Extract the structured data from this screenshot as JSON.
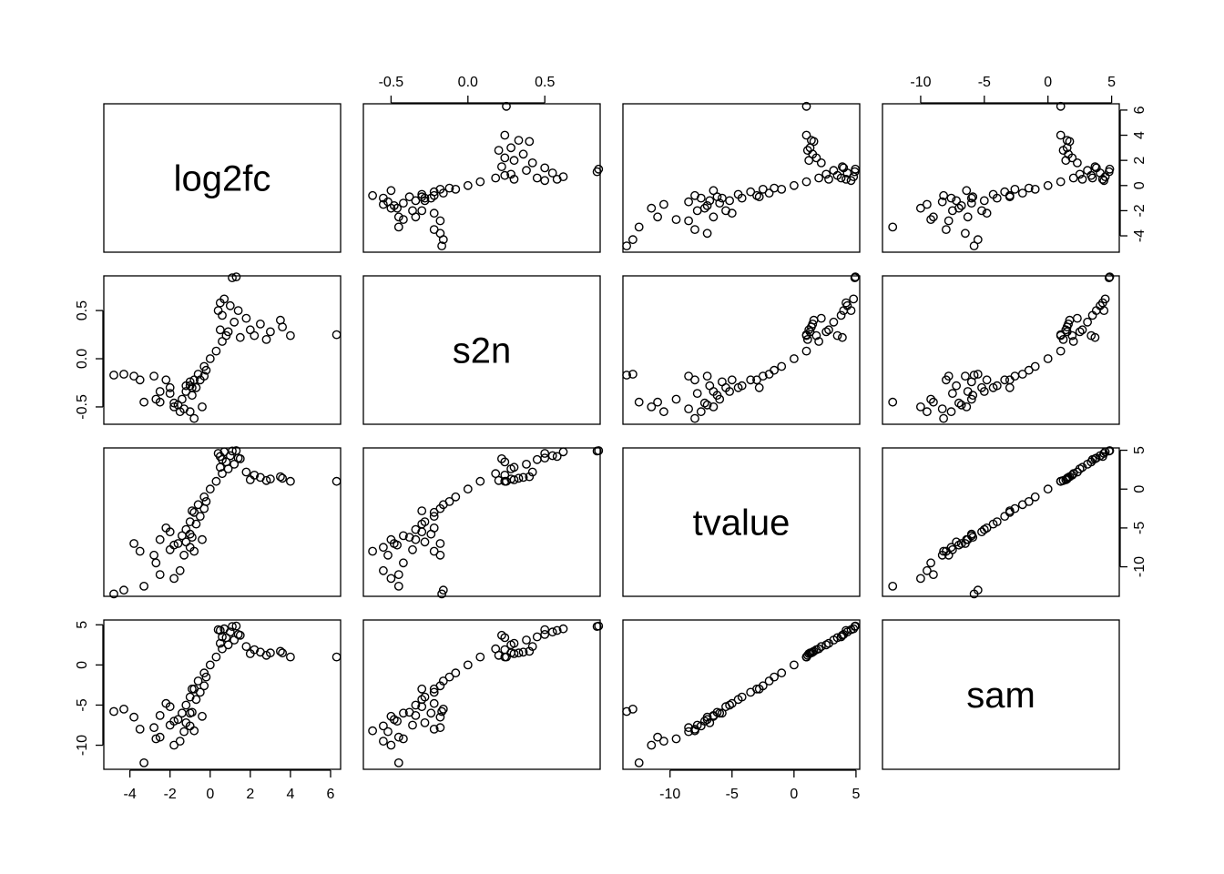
{
  "chart_data": {
    "type": "scatter",
    "title": "",
    "variables": [
      "log2fc",
      "s2n",
      "tvalue",
      "sam"
    ],
    "ranges": {
      "log2fc": [
        -5.3,
        6.5
      ],
      "s2n": [
        -0.68,
        0.86
      ],
      "tvalue": [
        -13.8,
        5.3
      ],
      "sam": [
        -13.0,
        5.6
      ]
    },
    "ticks": {
      "log2fc": [
        -4,
        -2,
        0,
        2,
        4,
        6
      ],
      "s2n": [
        -0.5,
        0.0,
        0.5
      ],
      "tvalue": [
        -10,
        -5,
        0,
        5
      ],
      "sam": [
        -10,
        -5,
        0,
        5
      ]
    },
    "tick_labels": {
      "log2fc": [
        "-4",
        "-2",
        "0",
        "2",
        "4",
        "6"
      ],
      "s2n": [
        "-0.5",
        "0.0",
        "0.5"
      ],
      "tvalue": [
        "-10",
        "-5",
        "0",
        "5"
      ],
      "sam": [
        "-10",
        "-5",
        "0",
        "5"
      ]
    },
    "axes": {
      "top": [
        {
          "col": 1,
          "var": "s2n"
        },
        {
          "col": 3,
          "var": "sam"
        }
      ],
      "bottom": [
        {
          "col": 0,
          "var": "log2fc"
        },
        {
          "col": 2,
          "var": "tvalue"
        }
      ],
      "left": [
        {
          "row": 1,
          "var": "s2n"
        },
        {
          "row": 3,
          "var": "sam"
        }
      ],
      "right": [
        {
          "row": 0,
          "var": "log2fc"
        },
        {
          "row": 2,
          "var": "tvalue"
        }
      ]
    },
    "grid": false,
    "marker": "open-circle",
    "points": [
      {
        "log2fc": 0.0,
        "s2n": 0.0,
        "tvalue": 0.0,
        "sam": 0.0
      },
      {
        "log2fc": 0.3,
        "s2n": 0.08,
        "tvalue": 1.0,
        "sam": 1.0
      },
      {
        "log2fc": 0.6,
        "s2n": 0.18,
        "tvalue": 2.0,
        "sam": 2.0
      },
      {
        "log2fc": 0.9,
        "s2n": 0.28,
        "tvalue": 2.6,
        "sam": 2.5
      },
      {
        "log2fc": 1.2,
        "s2n": 0.38,
        "tvalue": 3.2,
        "sam": 3.1
      },
      {
        "log2fc": 1.4,
        "s2n": 0.5,
        "tvalue": 4.0,
        "sam": 3.8
      },
      {
        "log2fc": 1.0,
        "s2n": 0.55,
        "tvalue": 4.3,
        "sam": 4.1
      },
      {
        "log2fc": 0.6,
        "s2n": 0.45,
        "tvalue": 3.8,
        "sam": 3.5
      },
      {
        "log2fc": 0.5,
        "s2n": 0.3,
        "tvalue": 2.8,
        "sam": 2.7
      },
      {
        "log2fc": 0.7,
        "s2n": 0.62,
        "tvalue": 4.8,
        "sam": 4.5
      },
      {
        "log2fc": 1.1,
        "s2n": 0.84,
        "tvalue": 4.9,
        "sam": 4.8
      },
      {
        "log2fc": 1.3,
        "s2n": 0.85,
        "tvalue": 4.95,
        "sam": 4.85
      },
      {
        "log2fc": 0.8,
        "s2n": 0.24,
        "tvalue": 3.5,
        "sam": 3.4
      },
      {
        "log2fc": 1.5,
        "s2n": 0.22,
        "tvalue": 3.9,
        "sam": 3.7
      },
      {
        "log2fc": 2.0,
        "s2n": 0.3,
        "tvalue": 1.2,
        "sam": 1.4
      },
      {
        "log2fc": 2.5,
        "s2n": 0.36,
        "tvalue": 1.5,
        "sam": 1.6
      },
      {
        "log2fc": 3.0,
        "s2n": 0.28,
        "tvalue": 1.3,
        "sam": 1.5
      },
      {
        "log2fc": 3.5,
        "s2n": 0.4,
        "tvalue": 1.6,
        "sam": 1.7
      },
      {
        "log2fc": 3.6,
        "s2n": 0.33,
        "tvalue": 1.4,
        "sam": 1.5
      },
      {
        "log2fc": 2.8,
        "s2n": 0.2,
        "tvalue": 1.1,
        "sam": 1.2
      },
      {
        "log2fc": 2.2,
        "s2n": 0.24,
        "tvalue": 1.8,
        "sam": 1.9
      },
      {
        "log2fc": 1.8,
        "s2n": 0.42,
        "tvalue": 2.2,
        "sam": 2.3
      },
      {
        "log2fc": 4.0,
        "s2n": 0.24,
        "tvalue": 1.0,
        "sam": 1.0
      },
      {
        "log2fc": 6.3,
        "s2n": 0.25,
        "tvalue": 1.0,
        "sam": 1.0
      },
      {
        "log2fc": -0.3,
        "s2n": -0.08,
        "tvalue": -1.0,
        "sam": -1.0
      },
      {
        "log2fc": -0.6,
        "s2n": -0.16,
        "tvalue": -2.0,
        "sam": -2.0
      },
      {
        "log2fc": -0.8,
        "s2n": -0.22,
        "tvalue": -3.0,
        "sam": -3.0
      },
      {
        "log2fc": -1.0,
        "s2n": -0.28,
        "tvalue": -4.2,
        "sam": -4.0
      },
      {
        "log2fc": -1.2,
        "s2n": -0.34,
        "tvalue": -5.2,
        "sam": -5.0
      },
      {
        "log2fc": -1.4,
        "s2n": -0.42,
        "tvalue": -6.0,
        "sam": -6.0
      },
      {
        "log2fc": -0.7,
        "s2n": -0.3,
        "tvalue": -4.5,
        "sam": -4.3
      },
      {
        "log2fc": -0.5,
        "s2n": -0.22,
        "tvalue": -3.5,
        "sam": -3.4
      },
      {
        "log2fc": -1.6,
        "s2n": -0.48,
        "tvalue": -7.0,
        "sam": -6.8
      },
      {
        "log2fc": -1.8,
        "s2n": -0.46,
        "tvalue": -7.2,
        "sam": -7.0
      },
      {
        "log2fc": -1.0,
        "s2n": -0.55,
        "tvalue": -7.5,
        "sam": -7.6
      },
      {
        "log2fc": -0.8,
        "s2n": -0.62,
        "tvalue": -8.0,
        "sam": -8.2
      },
      {
        "log2fc": -0.4,
        "s2n": -0.5,
        "tvalue": -6.5,
        "sam": -6.4
      },
      {
        "log2fc": -1.3,
        "s2n": -0.52,
        "tvalue": -8.5,
        "sam": -8.3
      },
      {
        "log2fc": -2.0,
        "s2n": -0.3,
        "tvalue": -5.5,
        "sam": -5.2
      },
      {
        "log2fc": -2.2,
        "s2n": -0.22,
        "tvalue": -5.0,
        "sam": -4.8
      },
      {
        "log2fc": -2.5,
        "s2n": -0.34,
        "tvalue": -6.5,
        "sam": -6.3
      },
      {
        "log2fc": -2.8,
        "s2n": -0.18,
        "tvalue": -8.5,
        "sam": -7.8
      },
      {
        "log2fc": -3.5,
        "s2n": -0.22,
        "tvalue": -8.0,
        "sam": -8.0
      },
      {
        "log2fc": -3.8,
        "s2n": -0.18,
        "tvalue": -7.0,
        "sam": -6.5
      },
      {
        "log2fc": -3.3,
        "s2n": -0.45,
        "tvalue": -12.5,
        "sam": -12.2
      },
      {
        "log2fc": -2.5,
        "s2n": -0.45,
        "tvalue": -11.0,
        "sam": -9.0
      },
      {
        "log2fc": -2.7,
        "s2n": -0.42,
        "tvalue": -9.5,
        "sam": -9.2
      },
      {
        "log2fc": -1.8,
        "s2n": -0.5,
        "tvalue": -11.5,
        "sam": -10.0
      },
      {
        "log2fc": -1.5,
        "s2n": -0.55,
        "tvalue": -10.5,
        "sam": -9.5
      },
      {
        "log2fc": -4.3,
        "s2n": -0.16,
        "tvalue": -13.0,
        "sam": -5.5
      },
      {
        "log2fc": -4.8,
        "s2n": -0.17,
        "tvalue": -13.5,
        "sam": -5.8
      },
      {
        "log2fc": -1.2,
        "s2n": -0.28,
        "tvalue": -6.8,
        "sam": -7.2
      },
      {
        "log2fc": -1.0,
        "s2n": -0.24,
        "tvalue": -5.8,
        "sam": -6.0
      },
      {
        "log2fc": -0.9,
        "s2n": -0.38,
        "tvalue": -6.2,
        "sam": -5.9
      },
      {
        "log2fc": -0.3,
        "s2n": -0.18,
        "tvalue": -2.5,
        "sam": -2.6
      },
      {
        "log2fc": -0.2,
        "s2n": -0.12,
        "tvalue": -1.6,
        "sam": -1.5
      },
      {
        "log2fc": -0.9,
        "s2n": -0.3,
        "tvalue": -2.8,
        "sam": -3.0
      },
      {
        "log2fc": -2.0,
        "s2n": -0.36,
        "tvalue": -7.8,
        "sam": -7.5
      },
      {
        "log2fc": 0.4,
        "s2n": 0.5,
        "tvalue": 4.6,
        "sam": 4.4
      },
      {
        "log2fc": 0.5,
        "s2n": 0.58,
        "tvalue": 4.2,
        "sam": 4.3
      }
    ]
  }
}
